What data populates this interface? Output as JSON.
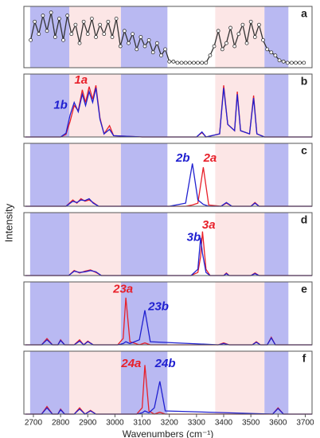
{
  "ylabel": "Intensity",
  "regions": [
    {
      "from": 2688,
      "to": 2832,
      "color": "#b9b9f2"
    },
    {
      "from": 2832,
      "to": 3022,
      "color": "#fce6e6"
    },
    {
      "from": 3022,
      "to": 3193,
      "color": "#b9b9f2"
    },
    {
      "from": 3369,
      "to": 3550,
      "color": "#fce6e6"
    },
    {
      "from": 3550,
      "to": 3638,
      "color": "#b9b9f2"
    }
  ],
  "chart_data": [
    {
      "type": "line",
      "label": "a",
      "markers": true,
      "xlim": [
        2665,
        3725
      ],
      "ylim": [
        0,
        1
      ],
      "x": [
        2690,
        2705,
        2720,
        2735,
        2750,
        2765,
        2780,
        2795,
        2810,
        2825,
        2840,
        2855,
        2870,
        2885,
        2900,
        2915,
        2930,
        2945,
        2960,
        2975,
        2990,
        3005,
        3020,
        3035,
        3050,
        3065,
        3080,
        3095,
        3110,
        3125,
        3140,
        3155,
        3170,
        3185,
        3200,
        3215,
        3230,
        3245,
        3260,
        3275,
        3290,
        3305,
        3320,
        3335,
        3350,
        3365,
        3380,
        3395,
        3410,
        3425,
        3440,
        3455,
        3470,
        3485,
        3500,
        3515,
        3530,
        3545,
        3560,
        3575,
        3590,
        3605,
        3620,
        3635,
        3650,
        3665,
        3680,
        3695
      ],
      "series": [
        {
          "color": "#333333",
          "values": [
            0.45,
            0.75,
            0.55,
            0.85,
            0.6,
            0.9,
            0.5,
            0.8,
            0.45,
            0.85,
            0.55,
            0.7,
            0.4,
            0.75,
            0.55,
            0.8,
            0.5,
            0.7,
            0.55,
            0.75,
            0.5,
            0.8,
            0.35,
            0.6,
            0.4,
            0.55,
            0.3,
            0.5,
            0.35,
            0.45,
            0.25,
            0.4,
            0.2,
            0.3,
            0.1,
            0.1,
            0.08,
            0.08,
            0.08,
            0.08,
            0.08,
            0.08,
            0.08,
            0.08,
            0.2,
            0.35,
            0.6,
            0.3,
            0.4,
            0.65,
            0.35,
            0.55,
            0.7,
            0.4,
            0.75,
            0.5,
            0.7,
            0.45,
            0.3,
            0.25,
            0.2,
            0.12,
            0.1,
            0.08,
            0.08,
            0.08,
            0.08,
            0.08
          ]
        }
      ]
    },
    {
      "type": "line",
      "label": "b",
      "xlim": [
        2665,
        3725
      ],
      "ylim": [
        0,
        1
      ],
      "x": [
        2670,
        2800,
        2820,
        2835,
        2850,
        2865,
        2880,
        2892,
        2905,
        2918,
        2930,
        2945,
        2960,
        2980,
        2995,
        3100,
        3300,
        3320,
        3335,
        3385,
        3400,
        3415,
        3440,
        3450,
        3462,
        3495,
        3510,
        3522,
        3550,
        3725
      ],
      "series": [
        {
          "color": "#e8202a",
          "values": [
            0,
            0,
            0.04,
            0.25,
            0.5,
            0.42,
            0.75,
            0.55,
            0.8,
            0.6,
            0.82,
            0.3,
            0.05,
            0.18,
            0.02,
            0,
            0,
            0.07,
            0,
            0.05,
            0.82,
            0.2,
            0.1,
            0.72,
            0.1,
            0.05,
            0.66,
            0.05,
            0,
            0
          ]
        },
        {
          "color": "#2020d0",
          "values": [
            0,
            0,
            0.06,
            0.35,
            0.55,
            0.4,
            0.68,
            0.5,
            0.72,
            0.55,
            0.78,
            0.28,
            0.05,
            0.12,
            0.02,
            0,
            0,
            0.08,
            0,
            0.05,
            0.78,
            0.2,
            0.1,
            0.68,
            0.1,
            0.05,
            0.62,
            0.05,
            0,
            0
          ]
        }
      ],
      "annotations": [
        {
          "text": "1a",
          "x": 2875,
          "y": 0.9,
          "color": "#e8202a"
        },
        {
          "text": "1b",
          "x": 2800,
          "y": 0.5,
          "color": "#2020d0"
        }
      ]
    },
    {
      "type": "line",
      "label": "c",
      "xlim": [
        2665,
        3725
      ],
      "ylim": [
        0,
        1
      ],
      "x": [
        2670,
        2820,
        2845,
        2860,
        2875,
        2890,
        2905,
        2920,
        2940,
        3200,
        3260,
        3285,
        3305,
        3325,
        3345,
        3390,
        3410,
        3430,
        3500,
        3515,
        3530,
        3725
      ],
      "series": [
        {
          "color": "#e8202a",
          "values": [
            0,
            0,
            0.1,
            0.05,
            0.12,
            0.08,
            0.1,
            0.06,
            0,
            0,
            0,
            0.02,
            0.05,
            0.62,
            0.02,
            0,
            0.05,
            0,
            0,
            0.06,
            0,
            0
          ]
        },
        {
          "color": "#2020d0",
          "values": [
            0,
            0,
            0.08,
            0.06,
            0.1,
            0.09,
            0.12,
            0.05,
            0,
            0,
            0.05,
            0.68,
            0.1,
            0.03,
            0,
            0,
            0.06,
            0,
            0,
            0.05,
            0,
            0
          ]
        }
      ],
      "annotations": [
        {
          "text": "2b",
          "x": 3250,
          "y": 0.76,
          "color": "#2020d0"
        },
        {
          "text": "2a",
          "x": 3350,
          "y": 0.76,
          "color": "#e8202a"
        }
      ]
    },
    {
      "type": "line",
      "label": "d",
      "xlim": [
        2665,
        3725
      ],
      "ylim": [
        0,
        1
      ],
      "x": [
        2670,
        2830,
        2850,
        2870,
        2890,
        2910,
        2930,
        2950,
        3280,
        3305,
        3315,
        3322,
        3335,
        3350,
        3400,
        3410,
        3420,
        3500,
        3515,
        3530,
        3725
      ],
      "series": [
        {
          "color": "#e8202a",
          "values": [
            0,
            0,
            0.08,
            0.04,
            0.07,
            0.09,
            0.05,
            0,
            0,
            0.05,
            0.3,
            0.7,
            0.1,
            0,
            0,
            0.04,
            0,
            0,
            0.04,
            0,
            0
          ]
        },
        {
          "color": "#2020d0",
          "values": [
            0,
            0,
            0.07,
            0.05,
            0.06,
            0.08,
            0.06,
            0,
            0,
            0.1,
            0.6,
            0.35,
            0.05,
            0,
            0,
            0.03,
            0,
            0,
            0.03,
            0,
            0
          ]
        }
      ],
      "annotations": [
        {
          "text": "3a",
          "x": 3345,
          "y": 0.8,
          "color": "#e8202a"
        },
        {
          "text": "3b",
          "x": 3290,
          "y": 0.6,
          "color": "#2020d0"
        }
      ]
    },
    {
      "type": "line",
      "label": "e",
      "xlim": [
        2665,
        3725
      ],
      "ylim": [
        0,
        1
      ],
      "x": [
        2670,
        2730,
        2750,
        2770,
        2790,
        2800,
        2815,
        2850,
        2870,
        2885,
        2900,
        2920,
        3010,
        3030,
        3040,
        3055,
        3090,
        3110,
        3130,
        3380,
        3400,
        3420,
        3505,
        3520,
        3535,
        3560,
        3575,
        3590,
        3725
      ],
      "series": [
        {
          "color": "#e8202a",
          "values": [
            0,
            0,
            0.1,
            0,
            0,
            0.08,
            0,
            0,
            0.08,
            0,
            0.06,
            0,
            0,
            0.1,
            0.75,
            0.05,
            0,
            0.03,
            0,
            0,
            0.03,
            0,
            0,
            0.05,
            0,
            0,
            0.12,
            0,
            0
          ]
        },
        {
          "color": "#2020d0",
          "values": [
            0,
            0,
            0.08,
            0,
            0,
            0.07,
            0,
            0,
            0.06,
            0,
            0.05,
            0,
            0,
            0.02,
            0.05,
            0.02,
            0.08,
            0.55,
            0.05,
            0,
            0.02,
            0,
            0,
            0.04,
            0,
            0,
            0.11,
            0,
            0
          ]
        }
      ],
      "annotations": [
        {
          "text": "23a",
          "x": 3030,
          "y": 0.88,
          "color": "#e8202a"
        },
        {
          "text": "23b",
          "x": 3160,
          "y": 0.6,
          "color": "#2020d0"
        }
      ]
    },
    {
      "type": "line",
      "label": "f",
      "xlim": [
        2665,
        3725
      ],
      "ylim": [
        0,
        1
      ],
      "x": [
        2670,
        2730,
        2750,
        2770,
        2790,
        2800,
        2815,
        2850,
        2870,
        2890,
        2910,
        2930,
        3080,
        3100,
        3110,
        3125,
        3145,
        3165,
        3185,
        3580,
        3600,
        3620,
        3725
      ],
      "series": [
        {
          "color": "#e8202a",
          "values": [
            0,
            0,
            0.12,
            0,
            0,
            0.08,
            0,
            0,
            0.1,
            0,
            0.06,
            0,
            0,
            0.1,
            0.78,
            0.05,
            0,
            0.03,
            0,
            0,
            0.1,
            0,
            0
          ]
        },
        {
          "color": "#2020d0",
          "values": [
            0,
            0,
            0.1,
            0,
            0,
            0.07,
            0,
            0,
            0.08,
            0,
            0.05,
            0,
            0,
            0.02,
            0.05,
            0.02,
            0.1,
            0.52,
            0.05,
            0,
            0.09,
            0,
            0
          ]
        }
      ],
      "annotations": [
        {
          "text": "24a",
          "x": 3060,
          "y": 0.8,
          "color": "#e8202a"
        },
        {
          "text": "24b",
          "x": 3185,
          "y": 0.8,
          "color": "#2020d0"
        }
      ],
      "xticks": [
        2700,
        2800,
        2900,
        3000,
        3100,
        3200,
        3300,
        3400,
        3500,
        3600,
        3700
      ],
      "xlabel": "Wavenumbers (cm⁻¹)"
    }
  ]
}
